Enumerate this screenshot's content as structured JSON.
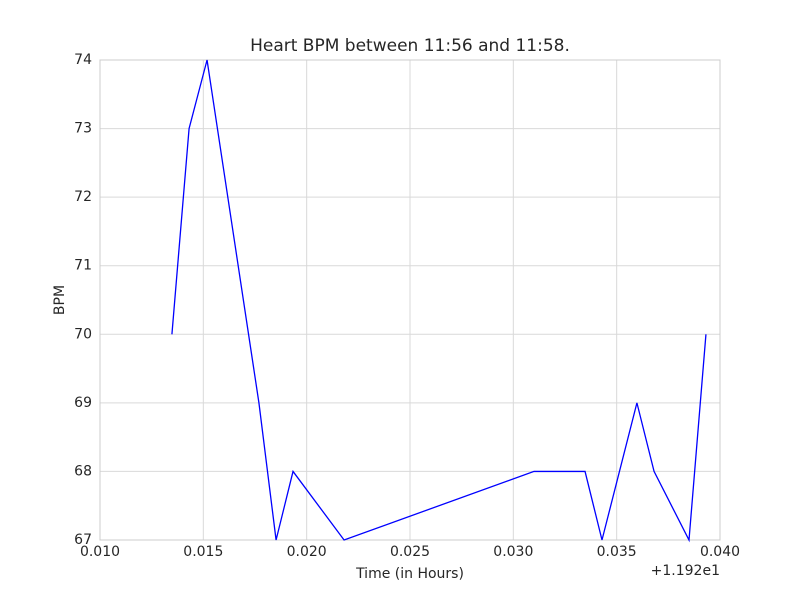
{
  "chart_data": {
    "type": "line",
    "title": "Heart BPM between 11:56 and 11:58.",
    "x_label": "Time (in Hours)",
    "y_label": "BPM",
    "x_offset_label": "+1.192e1",
    "x": [
      0.01348,
      0.01431,
      0.01518,
      0.01769,
      0.01852,
      0.01934,
      0.02181,
      0.031,
      0.03347,
      0.03429,
      0.03598,
      0.03681,
      0.0385,
      0.03932
    ],
    "series": [
      {
        "color": "#0000ff",
        "values": [
          70,
          73,
          74,
          69,
          67,
          68,
          67,
          68,
          68,
          67,
          69,
          68,
          67,
          70
        ]
      }
    ],
    "xlim": [
      0.01,
      0.04
    ],
    "xticks": [
      {
        "value": 0.01,
        "label": "0.010"
      },
      {
        "value": 0.015,
        "label": "0.015"
      },
      {
        "value": 0.02,
        "label": "0.020"
      },
      {
        "value": 0.025,
        "label": "0.025"
      },
      {
        "value": 0.03,
        "label": "0.030"
      },
      {
        "value": 0.035,
        "label": "0.035"
      },
      {
        "value": 0.04,
        "label": "0.040"
      }
    ],
    "ylim": [
      67,
      74
    ],
    "yticks": [
      67,
      68,
      69,
      70,
      71,
      72,
      73,
      74
    ],
    "grid": true
  }
}
